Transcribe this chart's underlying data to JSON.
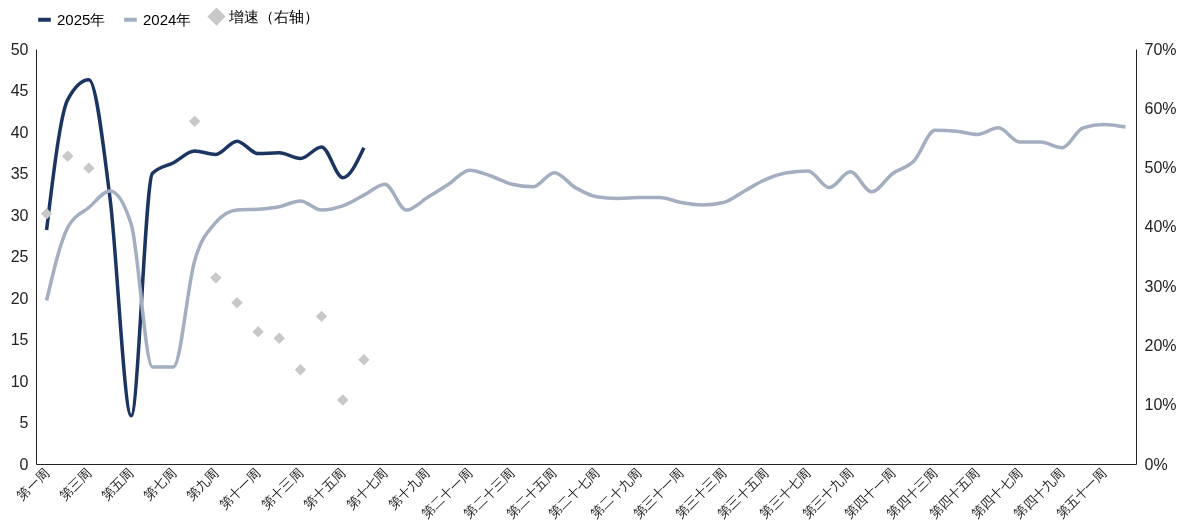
{
  "chart_data": {
    "type": "line",
    "categories": [
      "第一周",
      null,
      "第三周",
      null,
      "第五周",
      null,
      "第七周",
      null,
      "第九周",
      null,
      "第十一周",
      null,
      "第十三周",
      null,
      "第十五周",
      null,
      "第十七周",
      null,
      "第十九周",
      null,
      "第二十一周",
      null,
      "第二十三周",
      null,
      "第二十五周",
      null,
      "第二十七周",
      null,
      "第二十九周",
      null,
      "第三十一周",
      null,
      "第三十三周",
      null,
      "第三十五周",
      null,
      "第三十七周",
      null,
      "第三十九周",
      null,
      "第四十一周",
      null,
      "第四十三周",
      null,
      "第四十五周",
      null,
      "第四十七周",
      null,
      "第四十九周",
      null,
      "第五十一周",
      null
    ],
    "series": [
      {
        "name": "2025年",
        "color": "#1b3460",
        "values": [
          28.2,
          43.9,
          46.3,
          32.0,
          5.8,
          35.0,
          36.3,
          37.7,
          37.3,
          38.9,
          37.4,
          37.5,
          36.8,
          38.2,
          34.5,
          38.1,
          null,
          null,
          null,
          null,
          null,
          null,
          null,
          null,
          null,
          null,
          null,
          null,
          null,
          null,
          null,
          null,
          null,
          null,
          null,
          null,
          null,
          null,
          null,
          null,
          null,
          null,
          null,
          null,
          null,
          null,
          null,
          null,
          null,
          null,
          null,
          null
        ]
      },
      {
        "name": "2024年",
        "color": "#a3aec0",
        "values": [
          19.7,
          28.5,
          30.9,
          32.9,
          28.9,
          11.7,
          11.7,
          24.5,
          29.1,
          30.6,
          30.7,
          31.0,
          31.7,
          30.6,
          31.1,
          32.4,
          33.7,
          30.6,
          32.1,
          33.7,
          35.4,
          34.7,
          33.7,
          33.4,
          35.1,
          33.3,
          32.2,
          32.0,
          32.1,
          32.1,
          31.5,
          31.2,
          31.5,
          32.9,
          34.3,
          35.1,
          35.3,
          33.3,
          35.2,
          32.8,
          35.0,
          36.5,
          40.2,
          40.1,
          39.7,
          40.5,
          38.8,
          38.8,
          38.1,
          40.5,
          40.9,
          40.6
        ]
      },
      {
        "name": "增速（右轴）",
        "type": "scatter",
        "axis": "y2",
        "marker": "diamond",
        "color": "#c8c8c8",
        "values": [
          42.2,
          51.9,
          49.9,
          null,
          null,
          null,
          null,
          57.8,
          31.4,
          27.2,
          22.3,
          21.2,
          15.9,
          24.9,
          10.8,
          17.6,
          null,
          null,
          null,
          null,
          null,
          null,
          null,
          null,
          null,
          null,
          null,
          null,
          null,
          null,
          null,
          null,
          null,
          null,
          null,
          null,
          null,
          null,
          null,
          null,
          null,
          null,
          null,
          null,
          null,
          null,
          null,
          null,
          null,
          null,
          null,
          null
        ]
      }
    ],
    "ylim": [
      0,
      50
    ],
    "yticks": [
      0,
      5,
      10,
      15,
      20,
      25,
      30,
      35,
      40,
      45,
      50
    ],
    "y2lim": [
      0,
      70
    ],
    "y2ticks": [
      {
        "value": 0,
        "label": "0%"
      },
      {
        "value": 10,
        "label": "10%"
      },
      {
        "value": 20,
        "label": "20%"
      },
      {
        "value": 30,
        "label": "30%"
      },
      {
        "value": 40,
        "label": "40%"
      },
      {
        "value": 50,
        "label": "50%"
      },
      {
        "value": 60,
        "label": "60%"
      },
      {
        "value": 70,
        "label": "70%"
      }
    ],
    "legend": "top",
    "grid": false,
    "marker": "none",
    "line_style": "solid"
  }
}
